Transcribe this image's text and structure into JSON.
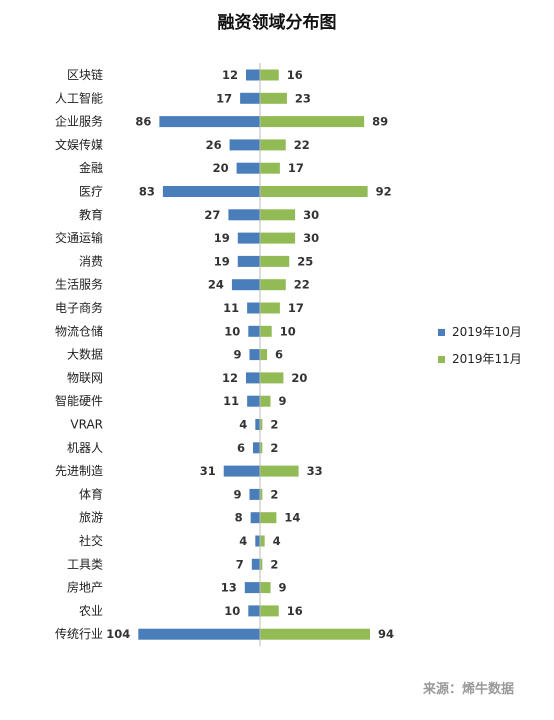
{
  "chart_data": {
    "type": "bar",
    "orientation": "horizontal-butterfly",
    "title": "融资领域分布图",
    "categories": [
      "区块链",
      "人工智能",
      "企业服务",
      "文娱传媒",
      "金融",
      "医疗",
      "教育",
      "交通运输",
      "消费",
      "生活服务",
      "电子商务",
      "物流仓储",
      "大数据",
      "物联网",
      "智能硬件",
      "VRAR",
      "机器人",
      "先进制造",
      "体育",
      "旅游",
      "社交",
      "工具类",
      "房地产",
      "农业",
      "传统行业"
    ],
    "series": [
      {
        "name": "2019年10月",
        "color": "#4a7ebb",
        "values": [
          12,
          17,
          86,
          26,
          20,
          83,
          27,
          19,
          19,
          24,
          11,
          10,
          9,
          12,
          11,
          4,
          6,
          31,
          9,
          8,
          4,
          7,
          13,
          10,
          104
        ]
      },
      {
        "name": "2019年11月",
        "color": "#92bb55",
        "values": [
          16,
          23,
          89,
          22,
          17,
          92,
          30,
          30,
          25,
          22,
          17,
          10,
          6,
          20,
          9,
          2,
          2,
          33,
          2,
          14,
          4,
          2,
          9,
          16,
          94
        ]
      }
    ],
    "grid": false,
    "legend_position": "right"
  },
  "source": "来源：烯牛数据"
}
